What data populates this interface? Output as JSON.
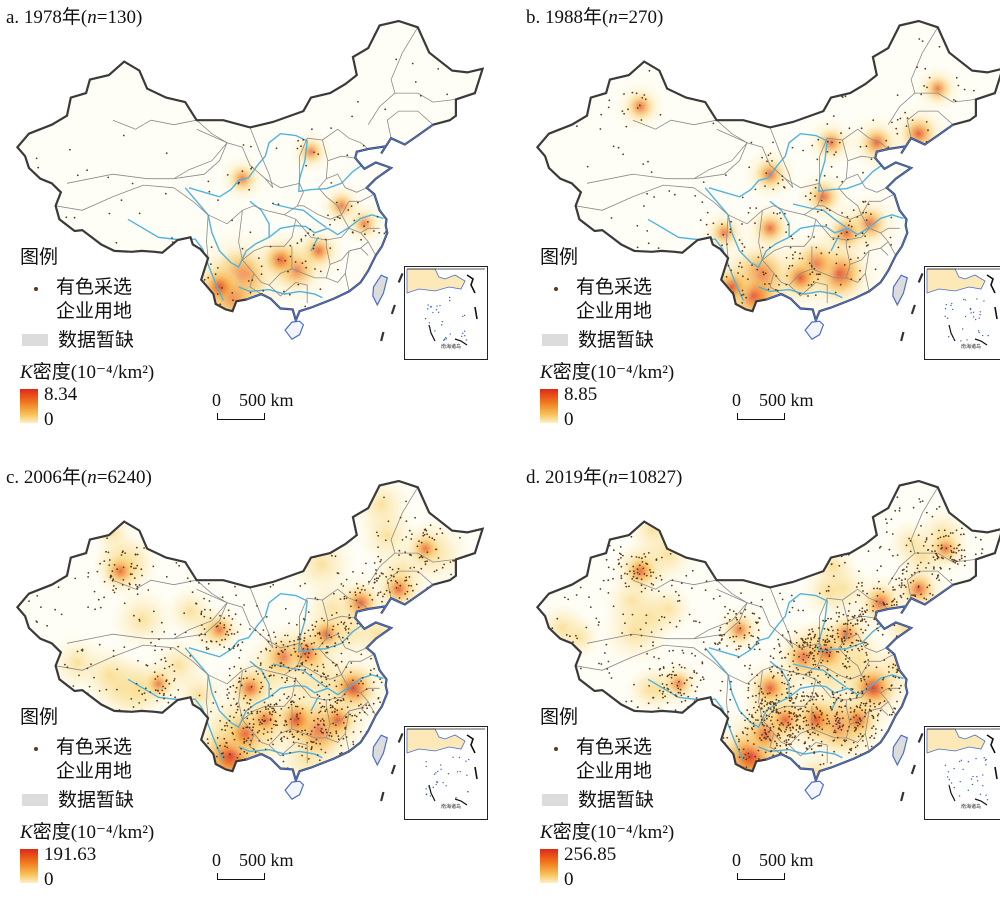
{
  "panels": [
    {
      "title": "a. 1978年(",
      "n_label": "n",
      "n_value": "=130)",
      "legend_title": "图例",
      "legend_item_points_line1": "有色采选",
      "legend_item_points_line2": "企业用地",
      "legend_item_nodata": "数据暂缺",
      "density_label_k": "K",
      "density_label_rest": "密度(10⁻⁴/km²)",
      "density_max": "8.34",
      "density_min": "0",
      "scale_label": "0    500 km",
      "inset_label": "南海诸岛",
      "hotspots": [
        {
          "lon": 102.7,
          "lat": 25.0,
          "level": 1.0
        },
        {
          "lon": 101.5,
          "lat": 23.0,
          "level": 0.8
        },
        {
          "lon": 100.0,
          "lat": 24.0,
          "level": 0.55
        },
        {
          "lon": 110.0,
          "lat": 26.0,
          "level": 0.6
        },
        {
          "lon": 108.0,
          "lat": 27.0,
          "level": 0.45
        },
        {
          "lon": 113.0,
          "lat": 28.0,
          "level": 0.35
        },
        {
          "lon": 103.0,
          "lat": 36.0,
          "level": 0.25
        },
        {
          "lon": 116.0,
          "lat": 33.0,
          "level": 0.25
        },
        {
          "lon": 119.0,
          "lat": 31.0,
          "level": 0.2
        },
        {
          "lon": 112.0,
          "lat": 39.0,
          "level": 0.2
        }
      ]
    },
    {
      "title": "b. 1988年(",
      "n_label": "n",
      "n_value": "=270)",
      "legend_title": "图例",
      "legend_item_points_line1": "有色采选",
      "legend_item_points_line2": "企业用地",
      "legend_item_nodata": "数据暂缺",
      "density_label_k": "K",
      "density_label_rest": "密度(10⁻⁴/km²)",
      "density_max": "8.85",
      "density_min": "0",
      "scale_label": "0    500 km",
      "inset_label": "南海诸岛",
      "hotspots": [
        {
          "lon": 102.7,
          "lat": 25.0,
          "level": 1.0
        },
        {
          "lon": 101.8,
          "lat": 23.0,
          "level": 0.8
        },
        {
          "lon": 113.0,
          "lat": 25.5,
          "level": 0.85
        },
        {
          "lon": 110.0,
          "lat": 26.5,
          "level": 0.6
        },
        {
          "lon": 108.0,
          "lat": 25.0,
          "level": 0.5
        },
        {
          "lon": 99.0,
          "lat": 24.0,
          "level": 0.5
        },
        {
          "lon": 117.0,
          "lat": 31.0,
          "level": 0.45
        },
        {
          "lon": 114.0,
          "lat": 30.0,
          "level": 0.4
        },
        {
          "lon": 104.0,
          "lat": 30.5,
          "level": 0.35
        },
        {
          "lon": 111.0,
          "lat": 34.0,
          "level": 0.35
        },
        {
          "lon": 104.0,
          "lat": 36.5,
          "level": 0.35
        },
        {
          "lon": 118.0,
          "lat": 40.0,
          "level": 0.4
        },
        {
          "lon": 123.5,
          "lat": 41.0,
          "level": 0.45
        },
        {
          "lon": 87.0,
          "lat": 44.0,
          "level": 0.3
        },
        {
          "lon": 126.0,
          "lat": 46.0,
          "level": 0.25
        },
        {
          "lon": 112.0,
          "lat": 40.0,
          "level": 0.3
        },
        {
          "lon": 98.0,
          "lat": 30.0,
          "level": 0.25
        }
      ]
    },
    {
      "title": "c. 2006年(",
      "n_label": "n",
      "n_value": "=6240)",
      "legend_title": "图例",
      "legend_item_points_line1": "有色采选",
      "legend_item_points_line2": "企业用地",
      "legend_item_nodata": "数据暂缺",
      "density_label_k": "K",
      "density_label_rest": "密度(10⁻⁴/km²)",
      "density_max": "191.63",
      "density_min": "0",
      "scale_label": "0    500 km",
      "inset_label": "南海诸岛",
      "hotspots": [
        {
          "lon": 101.5,
          "lat": 23.0,
          "level": 1.0
        },
        {
          "lon": 113.0,
          "lat": 26.0,
          "level": 0.95
        },
        {
          "lon": 117.5,
          "lat": 30.5,
          "level": 0.7
        },
        {
          "lon": 110.0,
          "lat": 27.0,
          "level": 0.6
        },
        {
          "lon": 103.5,
          "lat": 25.5,
          "level": 0.6
        },
        {
          "lon": 108.5,
          "lat": 34.0,
          "level": 0.55
        },
        {
          "lon": 111.5,
          "lat": 34.5,
          "level": 0.55
        },
        {
          "lon": 104.0,
          "lat": 30.5,
          "level": 0.45
        },
        {
          "lon": 115.5,
          "lat": 27.0,
          "level": 0.45
        },
        {
          "lon": 114.0,
          "lat": 36.5,
          "level": 0.4
        },
        {
          "lon": 118.5,
          "lat": 40.0,
          "level": 0.45
        },
        {
          "lon": 123.5,
          "lat": 41.5,
          "level": 0.4
        },
        {
          "lon": 106.0,
          "lat": 27.0,
          "level": 0.4
        },
        {
          "lon": 87.0,
          "lat": 43.5,
          "level": 0.35
        },
        {
          "lon": 100.0,
          "lat": 37.0,
          "level": 0.3
        },
        {
          "lon": 127.0,
          "lat": 46.0,
          "level": 0.3
        },
        {
          "lon": 92.0,
          "lat": 31.0,
          "level": 0.25
        }
      ]
    },
    {
      "title": "d. 2019年(",
      "n_label": "n",
      "n_value": "=10827)",
      "legend_title": "图例",
      "legend_item_points_line1": "有色采选",
      "legend_item_points_line2": "企业用地",
      "legend_item_nodata": "数据暂缺",
      "density_label_k": "K",
      "density_label_rest": "密度(10⁻⁴/km²)",
      "density_max": "256.85",
      "density_min": "0",
      "scale_label": "0    500 km",
      "inset_label": "南海诸岛",
      "hotspots": [
        {
          "lon": 101.5,
          "lat": 23.0,
          "level": 1.0
        },
        {
          "lon": 113.0,
          "lat": 26.5,
          "level": 0.85
        },
        {
          "lon": 117.5,
          "lat": 30.5,
          "level": 0.75
        },
        {
          "lon": 110.0,
          "lat": 27.0,
          "level": 0.6
        },
        {
          "lon": 103.5,
          "lat": 25.5,
          "level": 0.6
        },
        {
          "lon": 108.5,
          "lat": 34.0,
          "level": 0.55
        },
        {
          "lon": 111.5,
          "lat": 34.5,
          "level": 0.5
        },
        {
          "lon": 104.0,
          "lat": 30.5,
          "level": 0.45
        },
        {
          "lon": 115.5,
          "lat": 27.0,
          "level": 0.45
        },
        {
          "lon": 114.0,
          "lat": 36.5,
          "level": 0.4
        },
        {
          "lon": 118.5,
          "lat": 40.0,
          "level": 0.45
        },
        {
          "lon": 123.5,
          "lat": 41.5,
          "level": 0.4
        },
        {
          "lon": 106.0,
          "lat": 27.0,
          "level": 0.45
        },
        {
          "lon": 87.0,
          "lat": 43.5,
          "level": 0.35
        },
        {
          "lon": 100.0,
          "lat": 37.0,
          "level": 0.3
        },
        {
          "lon": 127.0,
          "lat": 46.0,
          "level": 0.3
        },
        {
          "lon": 92.0,
          "lat": 31.0,
          "level": 0.25
        }
      ]
    }
  ],
  "colors": {
    "china_outline": "#3a3a3a",
    "province_border": "#8a8a8a",
    "river": "#4fb3e0",
    "coast": "#4a6ec8",
    "nodata": "#dcdcdc",
    "base_fill": "#fffef6",
    "density_high": "#e0281a",
    "density_low": "#fdf0c8",
    "point": "#5a3a1a"
  }
}
